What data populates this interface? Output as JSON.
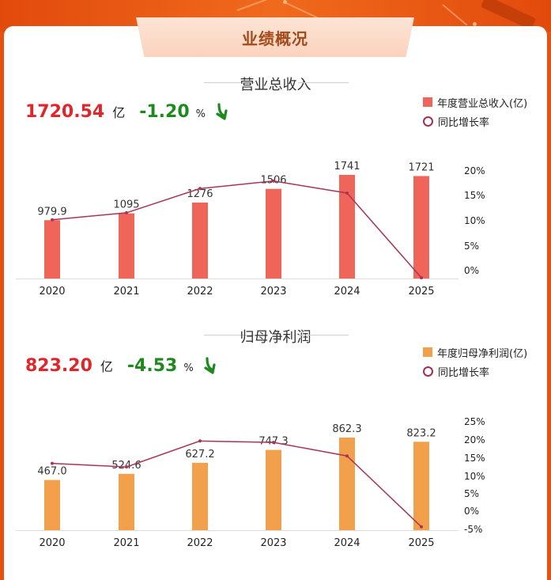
{
  "header": {
    "title": "业绩概况"
  },
  "colors": {
    "revenue_bar": "#ef6559",
    "profit_bar": "#f3a04d",
    "growth_line": "#a83458",
    "up": "#1e8a1e",
    "highlight": "#e0262a"
  },
  "revenue": {
    "section_title": "营业总收入",
    "kpi": {
      "value": "1720.54",
      "unit": "亿",
      "change": "-1.20",
      "change_unit": "%",
      "arrow_icon": "arrow-down-icon"
    },
    "legend": {
      "bar": "年度营业总收入(亿)",
      "line": "同比增长率"
    }
  },
  "profit": {
    "section_title": "归母净利润",
    "kpi": {
      "value": "823.20",
      "unit": "亿",
      "change": "-4.53",
      "change_unit": "%",
      "arrow_icon": "arrow-down-icon"
    },
    "legend": {
      "bar": "年度归母净利润(亿)",
      "line": "同比增长率"
    }
  },
  "chart_data": [
    {
      "type": "bar",
      "categories": [
        "2020",
        "2021",
        "2022",
        "2023",
        "2024",
        "2025"
      ],
      "series": [
        {
          "name": "年度营业总收入(亿)",
          "type": "bar",
          "values": [
            979.9,
            1095,
            1276,
            1506,
            1741,
            1721
          ],
          "labels": [
            "979.9",
            "1095",
            "1276",
            "1506",
            "1741",
            "1721"
          ]
        },
        {
          "name": "同比增长率",
          "type": "line",
          "axis": "right",
          "values": [
            10.3,
            11.7,
            16.5,
            18.0,
            15.6,
            -1.2
          ]
        }
      ],
      "right_axis": {
        "ticks": [
          "0%",
          "5%",
          "10%",
          "15%",
          "20%"
        ],
        "range": [
          -1.2,
          20
        ]
      },
      "left_axis_range": [
        0,
        1741
      ]
    },
    {
      "type": "bar",
      "categories": [
        "2020",
        "2021",
        "2022",
        "2023",
        "2024",
        "2025"
      ],
      "series": [
        {
          "name": "年度归母净利润(亿)",
          "type": "bar",
          "values": [
            467.0,
            524.6,
            627.2,
            747.3,
            862.3,
            823.2
          ],
          "labels": [
            "467.0",
            "524.6",
            "627.2",
            "747.3",
            "862.3",
            "823.2"
          ]
        },
        {
          "name": "同比增长率",
          "type": "line",
          "axis": "right",
          "values": [
            13.3,
            12.3,
            19.6,
            19.2,
            15.4,
            -4.5
          ]
        }
      ],
      "right_axis": {
        "ticks": [
          "-5%",
          "0%",
          "5%",
          "10%",
          "15%",
          "20%",
          "25%"
        ],
        "range": [
          -5,
          25
        ]
      },
      "left_axis_range": [
        0,
        862.3
      ]
    }
  ]
}
